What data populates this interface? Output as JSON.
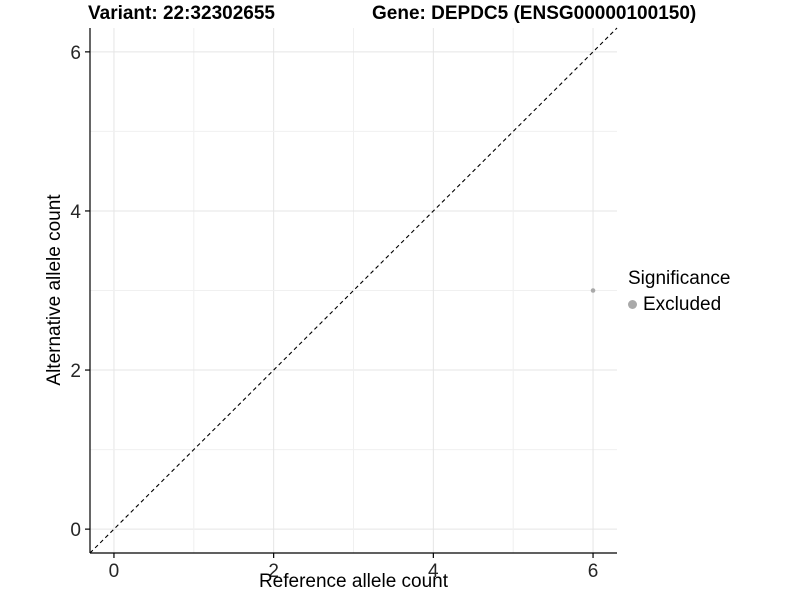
{
  "figure": {
    "variant_title": "Variant: 22:32302655",
    "gene_title": "Gene: DEPDC5 (ENSG00000100150)"
  },
  "chart_data": {
    "type": "scatter",
    "title": "Variant: 22:32302655   Gene: DEPDC5 (ENSG00000100150)",
    "xlabel": "Reference allele count",
    "ylabel": "Alternative allele count",
    "xlim": [
      -0.3,
      6.3
    ],
    "ylim": [
      -0.3,
      6.3
    ],
    "x_ticks": [
      0,
      2,
      4,
      6
    ],
    "y_ticks": [
      0,
      2,
      4,
      6
    ],
    "grid_values": [
      0,
      1,
      2,
      3,
      4,
      5,
      6
    ],
    "grid": "on",
    "points": [
      {
        "x": 6,
        "y": 3,
        "significance": "Excluded"
      }
    ],
    "identity_line": {
      "style": "dashed",
      "from": [
        -0.3,
        -0.3
      ],
      "to": [
        6.3,
        6.3
      ]
    },
    "legend": {
      "title": "Significance",
      "position": "right",
      "entries": [
        {
          "label": "Excluded",
          "color": "#a9a9a9"
        }
      ]
    }
  },
  "colors": {
    "background": "#ffffff",
    "grid_major": "#e5e5e5",
    "grid_minor": "#f0f0f0",
    "axis_line": "#000000",
    "tick_label": "#262626",
    "point": "#a9a9a9",
    "identity_line": "#000000"
  }
}
